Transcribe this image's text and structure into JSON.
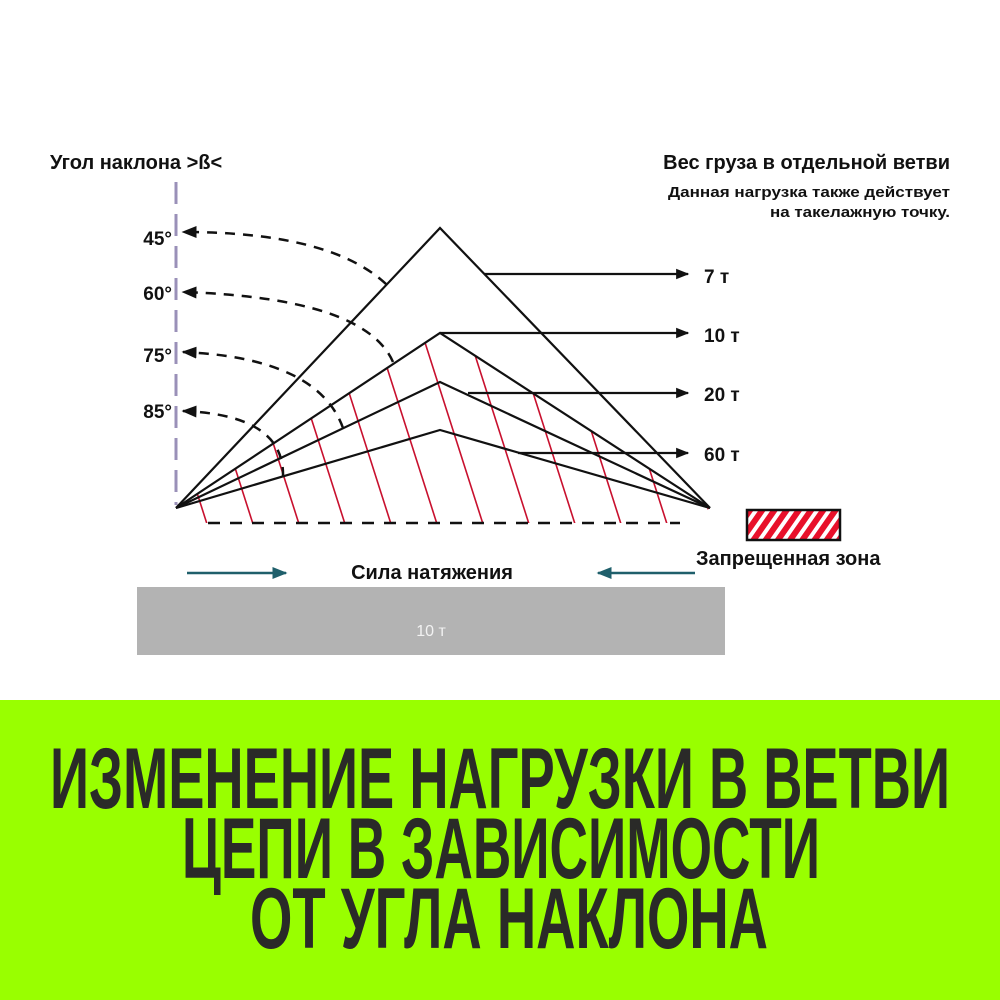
{
  "diagram": {
    "angle_axis_label": "Угол наклона >ß<",
    "angles": [
      "45°",
      "60°",
      "75°",
      "85°"
    ],
    "branch_load_title": "Вес груза в отдельной ветви",
    "branch_load_note_line1": "Данная нагрузка также действует",
    "branch_load_note_line2": "на такелажную точку.",
    "loads": [
      "7 т",
      "10 т",
      "20 т",
      "60 т"
    ],
    "forbidden_zone_label": "Запрещенная зона",
    "tension_label": "Сила натяжения",
    "load_weight": "10 т"
  },
  "banner": {
    "lines": [
      "ИЗМЕНЕНИЕ НАГРУЗКИ В ВЕТВИ",
      "ЦЕПИ В ЗАВИСИМОСТИ",
      "ОТ УГЛА НАКЛОНА"
    ]
  },
  "colors": {
    "banner_bg": "#99ff00",
    "banner_text": "#2a2a28",
    "hatch": "#c8102e",
    "tension_arrow": "#1f5f6b",
    "load_block": "#b3b3b3",
    "axis": "#9a90b8"
  }
}
